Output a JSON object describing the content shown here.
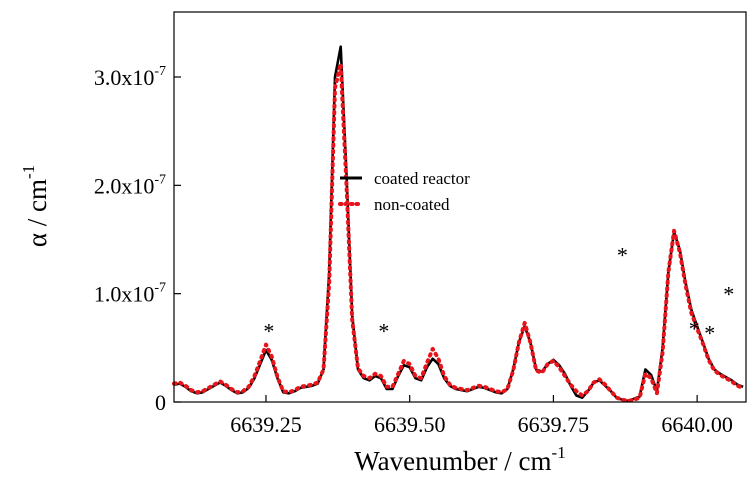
{
  "chart_data": {
    "type": "line",
    "xlabel": "Wavenumber / cm",
    "xlabel_sup": "-1",
    "ylabel": "α / cm",
    "ylabel_sup": "-1",
    "xlim": [
      6639.09,
      6640.085
    ],
    "ylim": [
      0,
      3.6e-07
    ],
    "x_ticks": [
      {
        "value": 6639.25,
        "label": "6639.25"
      },
      {
        "value": 6639.5,
        "label": "6639.50"
      },
      {
        "value": 6639.75,
        "label": "6639.75"
      },
      {
        "value": 6640.0,
        "label": "6640.00"
      }
    ],
    "y_ticks": [
      {
        "value": 0,
        "label": "0",
        "exp": ""
      },
      {
        "value": 1e-07,
        "label": "1.0x10",
        "exp": "-7"
      },
      {
        "value": 2e-07,
        "label": "2.0x10",
        "exp": "-7"
      },
      {
        "value": 3e-07,
        "label": "3.0x10",
        "exp": "-7"
      }
    ],
    "grid": false,
    "legend_position": "center",
    "annotations": [
      {
        "text": "*",
        "x": 6639.255,
        "y": 6.8e-08
      },
      {
        "text": "*",
        "x": 6639.455,
        "y": 6.8e-08
      },
      {
        "text": "*",
        "x": 6639.87,
        "y": 1.38e-07
      },
      {
        "text": "*",
        "x": 6639.995,
        "y": 7e-08
      },
      {
        "text": "*",
        "x": 6640.022,
        "y": 6.6e-08
      },
      {
        "text": "*",
        "x": 6640.055,
        "y": 1.02e-07
      }
    ],
    "series": [
      {
        "name": "coated reactor",
        "color": "#000000",
        "style": "solid",
        "x": [
          6639.09,
          6639.1,
          6639.11,
          6639.12,
          6639.13,
          6639.14,
          6639.15,
          6639.16,
          6639.17,
          6639.18,
          6639.19,
          6639.2,
          6639.21,
          6639.22,
          6639.23,
          6639.24,
          6639.25,
          6639.26,
          6639.27,
          6639.28,
          6639.29,
          6639.3,
          6639.31,
          6639.32,
          6639.33,
          6639.34,
          6639.35,
          6639.36,
          6639.37,
          6639.38,
          6639.39,
          6639.4,
          6639.41,
          6639.42,
          6639.43,
          6639.44,
          6639.45,
          6639.46,
          6639.47,
          6639.48,
          6639.49,
          6639.5,
          6639.51,
          6639.52,
          6639.53,
          6639.54,
          6639.55,
          6639.56,
          6639.57,
          6639.58,
          6639.59,
          6639.6,
          6639.61,
          6639.62,
          6639.63,
          6639.64,
          6639.65,
          6639.66,
          6639.67,
          6639.68,
          6639.69,
          6639.7,
          6639.71,
          6639.72,
          6639.73,
          6639.74,
          6639.75,
          6639.76,
          6639.77,
          6639.78,
          6639.79,
          6639.8,
          6639.81,
          6639.82,
          6639.83,
          6639.84,
          6639.85,
          6639.86,
          6639.87,
          6639.88,
          6639.89,
          6639.9,
          6639.91,
          6639.92,
          6639.93,
          6639.94,
          6639.95,
          6639.96,
          6639.97,
          6639.98,
          6639.99,
          6640.0,
          6640.01,
          6640.02,
          6640.03,
          6640.04,
          6640.05,
          6640.06,
          6640.07,
          6640.08
        ],
        "y": [
          1.6e-08,
          1.7e-08,
          1.4e-08,
          1e-08,
          8e-09,
          9e-09,
          1.2e-08,
          1.5e-08,
          1.8e-08,
          1.5e-08,
          1.1e-08,
          8e-09,
          9e-09,
          1.3e-08,
          2.2e-08,
          3.5e-08,
          4.8e-08,
          3.9e-08,
          2.2e-08,
          9e-09,
          8e-09,
          1e-08,
          1.3e-08,
          1.4e-08,
          1.5e-08,
          1.7e-08,
          3e-08,
          1.2e-07,
          3e-07,
          3.28e-07,
          2.1e-07,
          8e-08,
          3e-08,
          2.2e-08,
          2e-08,
          2.4e-08,
          2.2e-08,
          1.2e-08,
          1.2e-08,
          2.4e-08,
          3.4e-08,
          3.2e-08,
          2.2e-08,
          2e-08,
          3.2e-08,
          4e-08,
          3.5e-08,
          2.2e-08,
          1.5e-08,
          1.2e-08,
          1.1e-08,
          1e-08,
          1.2e-08,
          1.4e-08,
          1.3e-08,
          1.1e-08,
          9e-09,
          8e-09,
          1.2e-08,
          3e-08,
          5.5e-08,
          7e-08,
          5.5e-08,
          3e-08,
          2.8e-08,
          3.5e-08,
          3.9e-08,
          3.4e-08,
          2.6e-08,
          1.5e-08,
          6e-09,
          4e-09,
          1e-08,
          1.8e-08,
          2e-08,
          1.5e-08,
          1e-08,
          4e-09,
          2e-09,
          1e-09,
          3e-09,
          5e-09,
          3e-08,
          2.5e-08,
          1e-08,
          5e-08,
          1.2e-07,
          1.57e-07,
          1.4e-07,
          1.1e-07,
          8.5e-08,
          7e-08,
          5.5e-08,
          4e-08,
          3e-08,
          2.6e-08,
          2.3e-08,
          2e-08,
          1.6e-08,
          1.4e-08
        ]
      },
      {
        "name": "non-coated",
        "color": "#e8141b",
        "style": "dotted",
        "x": [
          6639.09,
          6639.1,
          6639.11,
          6639.12,
          6639.13,
          6639.14,
          6639.15,
          6639.16,
          6639.17,
          6639.18,
          6639.19,
          6639.2,
          6639.21,
          6639.22,
          6639.23,
          6639.24,
          6639.25,
          6639.26,
          6639.27,
          6639.28,
          6639.29,
          6639.3,
          6639.31,
          6639.32,
          6639.33,
          6639.34,
          6639.35,
          6639.36,
          6639.37,
          6639.38,
          6639.39,
          6639.4,
          6639.41,
          6639.42,
          6639.43,
          6639.44,
          6639.45,
          6639.46,
          6639.47,
          6639.48,
          6639.49,
          6639.5,
          6639.51,
          6639.52,
          6639.53,
          6639.54,
          6639.55,
          6639.56,
          6639.57,
          6639.58,
          6639.59,
          6639.6,
          6639.61,
          6639.62,
          6639.63,
          6639.64,
          6639.65,
          6639.66,
          6639.67,
          6639.68,
          6639.69,
          6639.7,
          6639.71,
          6639.72,
          6639.73,
          6639.74,
          6639.75,
          6639.76,
          6639.77,
          6639.78,
          6639.79,
          6639.8,
          6639.81,
          6639.82,
          6639.83,
          6639.84,
          6639.85,
          6639.86,
          6639.87,
          6639.88,
          6639.89,
          6639.9,
          6639.91,
          6639.92,
          6639.93,
          6639.94,
          6639.95,
          6639.96,
          6639.97,
          6639.98,
          6639.99,
          6640.0,
          6640.01,
          6640.02,
          6640.03,
          6640.04,
          6640.05,
          6640.06,
          6640.07,
          6640.08
        ],
        "y": [
          1.7e-08,
          1.8e-08,
          1.5e-08,
          1.1e-08,
          9e-09,
          1e-08,
          1.3e-08,
          1.6e-08,
          1.9e-08,
          1.6e-08,
          1.2e-08,
          9e-09,
          1e-08,
          1.4e-08,
          2.4e-08,
          3.8e-08,
          5.3e-08,
          4.2e-08,
          2.3e-08,
          1e-08,
          9e-09,
          1.1e-08,
          1.4e-08,
          1.5e-08,
          1.6e-08,
          1.8e-08,
          3e-08,
          1.1e-07,
          2.9e-07,
          3.12e-07,
          2e-07,
          7.6e-08,
          3.1e-08,
          2.4e-08,
          2.2e-08,
          2.6e-08,
          2.4e-08,
          1.4e-08,
          1.4e-08,
          2.6e-08,
          3.8e-08,
          3.5e-08,
          2.4e-08,
          2.2e-08,
          3.6e-08,
          4.9e-08,
          4e-08,
          2.4e-08,
          1.6e-08,
          1.3e-08,
          1.2e-08,
          1.1e-08,
          1.3e-08,
          1.5e-08,
          1.4e-08,
          1.2e-08,
          1e-08,
          9e-09,
          1.2e-08,
          2.9e-08,
          5.5e-08,
          7.3e-08,
          5.5e-08,
          2.9e-08,
          2.7e-08,
          3.5e-08,
          3.8e-08,
          3.2e-08,
          2.4e-08,
          1.6e-08,
          1e-08,
          6e-09,
          1e-08,
          1.8e-08,
          2.1e-08,
          1.6e-08,
          1e-08,
          4e-09,
          2e-09,
          1e-09,
          2e-09,
          4e-09,
          2.6e-08,
          2.2e-08,
          8e-09,
          4.6e-08,
          1.2e-07,
          1.58e-07,
          1.38e-07,
          1.08e-07,
          8.2e-08,
          6.8e-08,
          5.4e-08,
          3.9e-08,
          2.9e-08,
          2.5e-08,
          2.2e-08,
          1.9e-08,
          1.5e-08,
          1.3e-08
        ]
      }
    ]
  }
}
